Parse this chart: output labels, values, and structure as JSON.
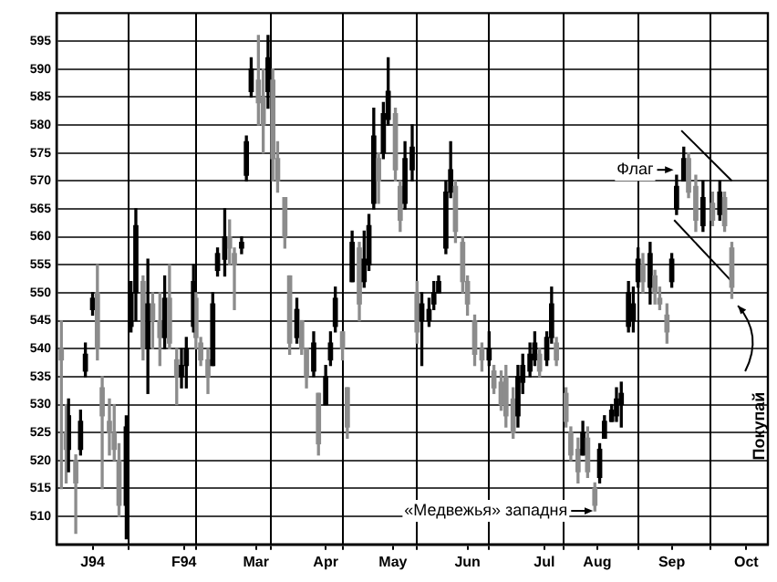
{
  "chart_data": {
    "type": "candlestick",
    "colors": [
      "#8c8c8c",
      "#8c8c8c",
      "#000000",
      "#8c8c8c",
      "#000000",
      "#000000",
      "#000000",
      "#8c8c8c",
      "#8c8c8c",
      "#8c8c8c",
      "#8c8c8c",
      "#8c8c8c",
      "#000000",
      "#000000",
      "#000000",
      "#8c8c8c",
      "#000000",
      "#8c8c8c",
      "#8c8c8c",
      "#000000",
      "#8c8c8c",
      "#8c8c8c",
      "#000000",
      "#000000",
      "#000000",
      "#8c8c8c",
      "#8c8c8c",
      "#8c8c8c",
      "#000000",
      "#000000",
      "#000000",
      "#8c8c8c",
      "#8c8c8c",
      "#000000",
      "#000000",
      "#000000",
      "#8c8c8c",
      "#8c8c8c",
      "#000000",
      "#8c8c8c",
      "#8c8c8c",
      "#8c8c8c",
      "#8c8c8c",
      "#000000",
      "#8c8c8c",
      "#8c8c8c",
      "#000000",
      "#8c8c8c",
      "#000000",
      "#000000",
      "#000000",
      "#8c8c8c",
      "#8c8c8c",
      "#000000",
      "#8c8c8c",
      "#000000",
      "#000000",
      "#000000",
      "#8c8c8c",
      "#000000",
      "#000000",
      "#8c8c8c",
      "#8c8c8c",
      "#000000",
      "#000000",
      "#8c8c8c",
      "#000000",
      "#000000",
      "#000000",
      "#000000",
      "#000000",
      "#000000",
      "#8c8c8c",
      "#8c8c8c",
      "#8c8c8c",
      "#8c8c8c",
      "#8c8c8c",
      "#000000",
      "#8c8c8c",
      "#8c8c8c",
      "#8c8c8c",
      "#8c8c8c",
      "#000000",
      "#000000",
      "#000000",
      "#000000",
      "#8c8c8c",
      "#000000",
      "#000000",
      "#8c8c8c",
      "#8c8c8c",
      "#8c8c8c",
      "#8c8c8c",
      "#000000",
      "#8c8c8c",
      "#8c8c8c",
      "#000000",
      "#000000",
      "#000000",
      "#000000",
      "#000000",
      "#000000",
      "#000000",
      "#000000",
      "#8c8c8c",
      "#000000",
      "#8c8c8c",
      "#8c8c8c",
      "#8c8c8c",
      "#000000",
      "#000000",
      "#000000",
      "#8c8c8c",
      "#8c8c8c",
      "#000000",
      "#8c8c8c",
      "#000000",
      "#8c8c8c",
      "#8c8c8c"
    ],
    "x": [
      "1994-01-04",
      "1994-01-06",
      "1994-01-07",
      "1994-01-10",
      "1994-01-12",
      "1994-01-14",
      "1994-01-17",
      "1994-01-19",
      "1994-01-21",
      "1994-01-24",
      "1994-01-26",
      "1994-01-28",
      "1994-01-31",
      "1994-02-02",
      "1994-02-04",
      "1994-02-07",
      "1994-02-09",
      "1994-02-11",
      "1994-02-14",
      "1994-02-16",
      "1994-02-18",
      "1994-02-21",
      "1994-02-23",
      "1994-02-25",
      "1994-02-28",
      "1994-03-01",
      "1994-03-03",
      "1994-03-06",
      "1994-03-08",
      "1994-03-10",
      "1994-03-13",
      "1994-03-15",
      "1994-03-17",
      "1994-03-20",
      "1994-03-22",
      "1994-03-24",
      "1994-03-27",
      "1994-03-29",
      "1994-03-31",
      "1994-04-02",
      "1994-04-04",
      "1994-04-07",
      "1994-04-09",
      "1994-04-12",
      "1994-04-14",
      "1994-04-16",
      "1994-04-19",
      "1994-04-21",
      "1994-04-24",
      "1994-04-26",
      "1994-04-28",
      "1994-05-01",
      "1994-05-03",
      "1994-05-05",
      "1994-05-08",
      "1994-05-10",
      "1994-05-12",
      "1994-05-14",
      "1994-05-16",
      "1994-05-18",
      "1994-05-20",
      "1994-05-23",
      "1994-05-25",
      "1994-05-27",
      "1994-05-30",
      "1994-06-01",
      "1994-06-03",
      "1994-06-06",
      "1994-06-08",
      "1994-06-10",
      "1994-06-13",
      "1994-06-15",
      "1994-06-17",
      "1994-06-20",
      "1994-06-22",
      "1994-06-25",
      "1994-06-28",
      "1994-07-01",
      "1994-07-03",
      "1994-07-06",
      "1994-07-08",
      "1994-07-11",
      "1994-07-13",
      "1994-07-15",
      "1994-07-18",
      "1994-07-20",
      "1994-07-22",
      "1994-07-25",
      "1994-07-27",
      "1994-07-29",
      "1994-08-02",
      "1994-08-04",
      "1994-08-07",
      "1994-08-09",
      "1994-08-11",
      "1994-08-14",
      "1994-08-16",
      "1994-08-18",
      "1994-08-21",
      "1994-08-23",
      "1994-08-25",
      "1994-08-28",
      "1994-08-30",
      "1994-09-01",
      "1994-09-03",
      "1994-09-06",
      "1994-09-08",
      "1994-09-10",
      "1994-09-13",
      "1994-09-15",
      "1994-09-17",
      "1994-09-20",
      "1994-09-22",
      "1994-09-25",
      "1994-09-28",
      "1994-10-02",
      "1994-10-05",
      "1994-10-07",
      "1994-10-10"
    ],
    "ohlc": [
      [
        540,
        545,
        515,
        538
      ],
      [
        525,
        530,
        516,
        522
      ],
      [
        522,
        531,
        518,
        528
      ],
      [
        520,
        521,
        507,
        516
      ],
      [
        522,
        529,
        521,
        527
      ],
      [
        536,
        541,
        535,
        539
      ],
      [
        547,
        550,
        546,
        549
      ],
      [
        550,
        555,
        538,
        540
      ],
      [
        533,
        535,
        515,
        528
      ],
      [
        527,
        531,
        521,
        525
      ],
      [
        525,
        530,
        520,
        522
      ],
      [
        520,
        523,
        510,
        512
      ],
      [
        512,
        528,
        506,
        526
      ],
      [
        544,
        552,
        543,
        550
      ],
      [
        550,
        565,
        545,
        562
      ],
      [
        552,
        553,
        538,
        540
      ],
      [
        540,
        556,
        532,
        548
      ],
      [
        548,
        550,
        540,
        545
      ],
      [
        545,
        550,
        537,
        542
      ],
      [
        542,
        553,
        540,
        549
      ],
      [
        549,
        555,
        540,
        541
      ],
      [
        538,
        540,
        530,
        535
      ],
      [
        535,
        540,
        533,
        537
      ],
      [
        537,
        542,
        533,
        540
      ],
      [
        544,
        555,
        543,
        552
      ],
      [
        549,
        550,
        540,
        542
      ],
      [
        541,
        542,
        537,
        538
      ],
      [
        538,
        540,
        532,
        535
      ],
      [
        537,
        550,
        537,
        548
      ],
      [
        554,
        558,
        553,
        557
      ],
      [
        556,
        565,
        553,
        560
      ],
      [
        560,
        563,
        555,
        558
      ],
      [
        557,
        558,
        547,
        555
      ],
      [
        558,
        560,
        557,
        559
      ],
      [
        571,
        578,
        570,
        577
      ],
      [
        586,
        592,
        585,
        590
      ],
      [
        588,
        596,
        580,
        584
      ],
      [
        585,
        590,
        575,
        580
      ],
      [
        586,
        596,
        583,
        592
      ],
      [
        588,
        590,
        570,
        574
      ],
      [
        574,
        577,
        568,
        570
      ],
      [
        567,
        567,
        558,
        560
      ],
      [
        553,
        553,
        539,
        541
      ],
      [
        542,
        549,
        541,
        547
      ],
      [
        545,
        545,
        539,
        540
      ],
      [
        540,
        540,
        533,
        535
      ],
      [
        536,
        543,
        535,
        541
      ],
      [
        532,
        532,
        521,
        523
      ],
      [
        530,
        537,
        530,
        535
      ],
      [
        538,
        543,
        537,
        541
      ],
      [
        544,
        551,
        543,
        549
      ],
      [
        543,
        543,
        538,
        540
      ],
      [
        533,
        533,
        524,
        526
      ],
      [
        552,
        561,
        552,
        559
      ],
      [
        558,
        559,
        545,
        548
      ],
      [
        552,
        561,
        551,
        556
      ],
      [
        555,
        564,
        554,
        562
      ],
      [
        566,
        583,
        565,
        578
      ],
      [
        574,
        575,
        566,
        570
      ],
      [
        575,
        584,
        574,
        582
      ],
      [
        581,
        592,
        580,
        586
      ],
      [
        582,
        583,
        570,
        572
      ],
      [
        569,
        570,
        561,
        563
      ],
      [
        566,
        577,
        565,
        574
      ],
      [
        572,
        580,
        570,
        576
      ],
      [
        550,
        552,
        541,
        543
      ],
      [
        545,
        550,
        537,
        548
      ],
      [
        545,
        549,
        544,
        547
      ],
      [
        548,
        552,
        547,
        550
      ],
      [
        550,
        553,
        550,
        552
      ],
      [
        558,
        570,
        557,
        568
      ],
      [
        568,
        577,
        567,
        572
      ],
      [
        569,
        570,
        559,
        561
      ],
      [
        559,
        560,
        550,
        552
      ],
      [
        552,
        553,
        546,
        548
      ],
      [
        545,
        546,
        537,
        539
      ],
      [
        540,
        541,
        536,
        538
      ],
      [
        538,
        543,
        537,
        540
      ],
      [
        536,
        537,
        532,
        533
      ],
      [
        534,
        536,
        529,
        530
      ],
      [
        535,
        537,
        526,
        528
      ],
      [
        531,
        533,
        524,
        525
      ],
      [
        528,
        537,
        526,
        535
      ],
      [
        534,
        539,
        532,
        537
      ],
      [
        536,
        541,
        535,
        539
      ],
      [
        538,
        543,
        537,
        541
      ],
      [
        539,
        540,
        535,
        536
      ],
      [
        538,
        543,
        537,
        542
      ],
      [
        542,
        551,
        541,
        548
      ],
      [
        541,
        542,
        537,
        538
      ],
      [
        532,
        533,
        526,
        527
      ],
      [
        525,
        526,
        520,
        521
      ],
      [
        522,
        524,
        516,
        518
      ],
      [
        521,
        527,
        521,
        525
      ],
      [
        524,
        526,
        517,
        518
      ],
      [
        515,
        516,
        511,
        512
      ],
      [
        517,
        523,
        516,
        522
      ],
      [
        524,
        528,
        524,
        527
      ],
      [
        527,
        530,
        527,
        529
      ],
      [
        528,
        533,
        527,
        531
      ],
      [
        530,
        534,
        526,
        532
      ],
      [
        544,
        552,
        543,
        550
      ],
      [
        545,
        551,
        543,
        548
      ],
      [
        552,
        558,
        551,
        556
      ],
      [
        555,
        557,
        550,
        552
      ],
      [
        551,
        559,
        548,
        557
      ],
      [
        553,
        554,
        548,
        550
      ],
      [
        549,
        551,
        547,
        548
      ],
      [
        546,
        548,
        541,
        543
      ],
      [
        552,
        557,
        551,
        556
      ],
      [
        565,
        571,
        564,
        569
      ],
      [
        570,
        576,
        570,
        574
      ],
      [
        574,
        575,
        567,
        568
      ],
      [
        569,
        571,
        561,
        563
      ],
      [
        562,
        570,
        561,
        567
      ],
      [
        566,
        568,
        562,
        563
      ],
      [
        564,
        570,
        563,
        568
      ],
      [
        567,
        568,
        561,
        562
      ],
      [
        558,
        559,
        549,
        551
      ]
    ],
    "series": [
      {
        "type": "line",
        "color": "#000000",
        "x": [
          "1994-09-19",
          "1994-10-10"
        ],
        "values": [
          579,
          570
        ]
      },
      {
        "type": "line",
        "color": "#000000",
        "x": [
          "1994-09-16",
          "1994-10-10"
        ],
        "values": [
          563,
          552
        ]
      }
    ],
    "xlim": [
      "1994-01-02",
      "1994-10-25"
    ],
    "xticks": [
      {
        "value": "1994-01-17",
        "label": "J94"
      },
      {
        "value": "1994-02-01",
        "label": null
      },
      {
        "value": "1994-02-24",
        "label": "F94"
      },
      {
        "value": "1994-03-01",
        "label": null
      },
      {
        "value": "1994-03-26",
        "label": "Mar"
      },
      {
        "value": "1994-04-01",
        "label": null
      },
      {
        "value": "1994-04-24",
        "label": "Apr"
      },
      {
        "value": "1994-05-01",
        "label": null
      },
      {
        "value": "1994-05-22",
        "label": "May"
      },
      {
        "value": "1994-06-01",
        "label": null
      },
      {
        "value": "1994-06-22",
        "label": "Jun"
      },
      {
        "value": "1994-07-01",
        "label": null
      },
      {
        "value": "1994-07-24",
        "label": "Jul"
      },
      {
        "value": "1994-08-01",
        "label": null
      },
      {
        "value": "1994-08-15",
        "label": "Aug"
      },
      {
        "value": "1994-09-01",
        "label": null
      },
      {
        "value": "1994-09-15",
        "label": "Sep"
      },
      {
        "value": "1994-10-01",
        "label": null
      },
      {
        "value": "1994-10-16",
        "label": "Oct"
      }
    ],
    "ylim": [
      505,
      600
    ],
    "yticks": [
      510,
      515,
      520,
      525,
      530,
      535,
      540,
      545,
      550,
      555,
      560,
      565,
      570,
      575,
      580,
      585,
      590,
      595
    ],
    "grid": true,
    "annotations": [
      {
        "text": "«Медвежья» западня",
        "x": "1994-08-14",
        "y": 511
      },
      {
        "text": "Флаг",
        "x": "1994-09-18",
        "y": 571
      },
      {
        "text": "Покупай",
        "x": "1994-10-11",
        "y": 549
      }
    ]
  }
}
